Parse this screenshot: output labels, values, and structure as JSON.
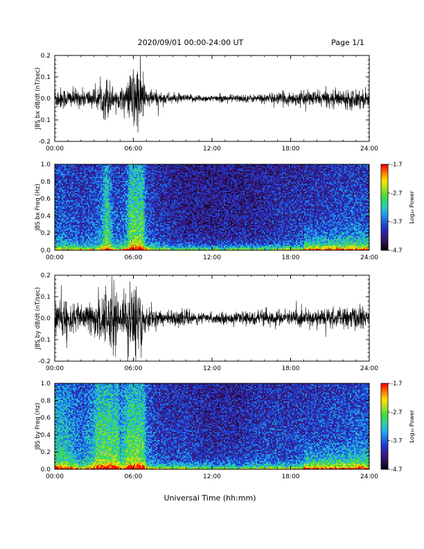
{
  "header": {
    "title": "2020/09/01  00:00-24:00 UT",
    "page": "Page 1/1"
  },
  "colors": {
    "trace": "#000000",
    "colormap": [
      "#000000",
      "#2a0e4a",
      "#3a1c8a",
      "#2033c8",
      "#1f6fe0",
      "#22b0e8",
      "#2fd0a0",
      "#3fdc3a",
      "#a8e020",
      "#ffe000",
      "#ff7800",
      "#ff0000"
    ]
  },
  "colorbar": {
    "label": "Log₁₀ Power",
    "tick_labels": [
      "-1.7",
      "-2.7",
      "-3.7",
      "-4.7"
    ],
    "range": [
      -4.7,
      -1.7
    ]
  },
  "xaxis": {
    "label": "Universal Time (hh:mm)",
    "tick_labels": [
      "00:00",
      "06:00",
      "12:00",
      "18:00",
      "24:00"
    ],
    "range": [
      0,
      24
    ]
  },
  "chart_data": [
    {
      "type": "line",
      "ylabel": "JBS bx dB/dt (nT/sec)",
      "ylim": [
        -0.2,
        0.2
      ],
      "y_tick_labels": [
        "0.2",
        "0.1",
        "0.0",
        "-0.1",
        "-0.2"
      ],
      "x": [
        0,
        1,
        2,
        3,
        3.5,
        4,
        4.5,
        5,
        5.5,
        6,
        6.5,
        7,
        8,
        9,
        10,
        11,
        12,
        13,
        14,
        15,
        16,
        17,
        18,
        19,
        20,
        21,
        22,
        23,
        24
      ],
      "amplitude": [
        0.06,
        0.05,
        0.045,
        0.05,
        0.06,
        0.12,
        0.05,
        0.05,
        0.07,
        0.18,
        0.17,
        0.05,
        0.035,
        0.025,
        0.02,
        0.02,
        0.015,
        0.02,
        0.02,
        0.02,
        0.025,
        0.03,
        0.035,
        0.035,
        0.04,
        0.04,
        0.045,
        0.05,
        0.045
      ]
    },
    {
      "type": "heatmap",
      "ylabel": "JBS bx Freq (Hz)",
      "ylim": [
        0.0,
        1.0
      ],
      "y_tick_labels": [
        "1.0",
        "0.8",
        "0.6",
        "0.4",
        "0.2",
        "0.0"
      ],
      "colorbar_range": [
        -4.7,
        -1.7
      ]
    },
    {
      "type": "line",
      "ylabel": "JBS by dB/dt (nT/sec)",
      "ylim": [
        -0.2,
        0.2
      ],
      "y_tick_labels": [
        "0.2",
        "0.1",
        "0.0",
        "-0.1",
        "-0.2"
      ],
      "x": [
        0,
        1,
        2,
        3,
        3.5,
        4,
        4.5,
        5,
        5.5,
        6,
        6.5,
        7,
        8,
        9,
        10,
        11,
        12,
        13,
        14,
        15,
        16,
        17,
        18,
        19,
        20,
        21,
        22,
        23,
        24
      ],
      "amplitude": [
        0.1,
        0.09,
        0.06,
        0.09,
        0.16,
        0.12,
        0.2,
        0.08,
        0.11,
        0.2,
        0.2,
        0.06,
        0.04,
        0.035,
        0.04,
        0.03,
        0.025,
        0.03,
        0.025,
        0.035,
        0.04,
        0.04,
        0.04,
        0.045,
        0.045,
        0.05,
        0.05,
        0.06,
        0.055
      ]
    },
    {
      "type": "heatmap",
      "ylabel": "JBS by Freq (Hz)",
      "ylim": [
        0.0,
        1.0
      ],
      "y_tick_labels": [
        "1.0",
        "0.8",
        "0.6",
        "0.4",
        "0.2",
        "0.0"
      ],
      "colorbar_range": [
        -4.7,
        -1.7
      ]
    }
  ]
}
